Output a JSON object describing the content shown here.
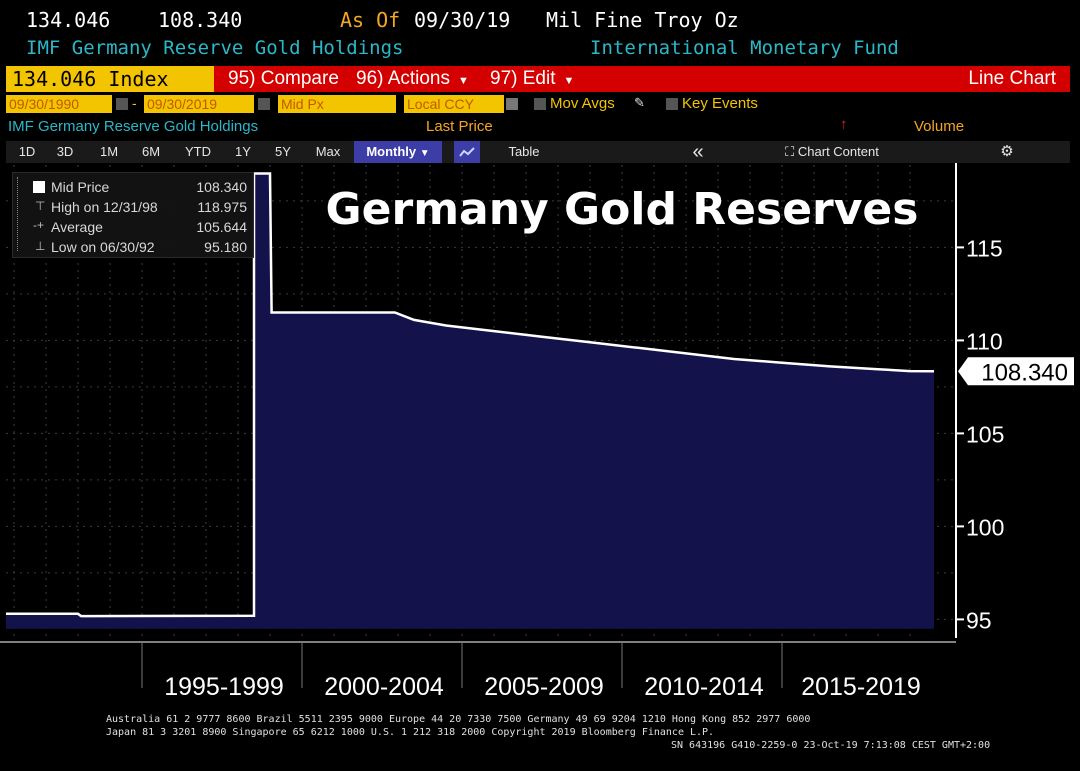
{
  "header": {
    "last_value": "134.046",
    "mid_value": "108.340",
    "as_of_label": "As Of",
    "as_of_date": "09/30/19",
    "unit": "Mil Fine Troy Oz",
    "series_title": "IMF Germany Reserve Gold Holdings",
    "source": "International Monetary Fund"
  },
  "toolbar": {
    "ticker": "134.046 Index",
    "compare": "95) Compare",
    "actions": "96) Actions",
    "edit": "97) Edit",
    "chart_type": "Line Chart"
  },
  "fields": {
    "start_date": "09/30/1990",
    "end_date": "09/30/2019",
    "price_field": "Mid Px",
    "currency": "Local CCY",
    "mov_avgs": "Mov Avgs",
    "key_events": "Key Events"
  },
  "series_row": {
    "name": "IMF Germany Reserve Gold Holdings",
    "last_price": "Last Price",
    "volume": "Volume"
  },
  "periods": [
    "1D",
    "3D",
    "1M",
    "6M",
    "YTD",
    "1Y",
    "5Y",
    "Max"
  ],
  "frequency": "Monthly",
  "table_label": "Table",
  "collapse_glyph": "«",
  "chart_content_label": "Chart Content",
  "legend": {
    "rows": [
      {
        "label": "Mid Price",
        "value": "108.340"
      },
      {
        "label": "High on 12/31/98",
        "value": "118.975"
      },
      {
        "label": "Average",
        "value": "105.644"
      },
      {
        "label": "Low on 06/30/92",
        "value": "95.180"
      }
    ]
  },
  "footer": {
    "line1": "Australia 61 2 9777 8600 Brazil 5511 2395 9000 Europe 44 20 7330 7500 Germany 49 69 9204 1210 Hong Kong 852 2977 6000",
    "line2": "Japan 81 3 3201 8900        Singapore 65 6212 1000        U.S. 1 212 318 2000          Copyright 2019 Bloomberg Finance L.P.",
    "line3": "SN 643196 G410-2259-0 23-Oct-19  7:13:08 CEST GMT+2:00"
  },
  "colors": {
    "accent_red": "#d40000",
    "accent_yellow": "#f3c400",
    "area_fill": "#14124a",
    "line": "#ffffff"
  },
  "chart_data": {
    "type": "area",
    "title": "Germany Gold Reserves",
    "xlabel": "",
    "ylabel": "",
    "ylim": [
      94,
      119
    ],
    "xlim": [
      1990.75,
      2019.75
    ],
    "yticks": [
      95,
      100,
      105,
      110,
      115
    ],
    "ytick_labels": [
      "95",
      "100",
      "105",
      "110",
      "115"
    ],
    "xcategories": [
      "1995-1999",
      "2000-2004",
      "2005-2009",
      "2010-2014",
      "2015-2019"
    ],
    "xcategory_ranges": [
      [
        1995,
        2000
      ],
      [
        2000,
        2005
      ],
      [
        2005,
        2010
      ],
      [
        2010,
        2015
      ],
      [
        2015,
        2020
      ]
    ],
    "last_value_label": "108.340",
    "series": [
      {
        "name": "IMF Germany Reserve Gold Holdings",
        "x": [
          1990.75,
          1993.0,
          1993.1,
          1998.5,
          1998.5,
          1998.99,
          1999.0,
          1999.05,
          2002.9,
          2003.5,
          2004.5,
          2006.0,
          2007.5,
          2009.0,
          2010.5,
          2012.0,
          2013.5,
          2015.0,
          2016.5,
          2018.0,
          2019.0,
          2019.75
        ],
        "y": [
          95.3,
          95.3,
          95.18,
          95.2,
          118.975,
          118.975,
          118.975,
          111.5,
          111.5,
          111.1,
          110.8,
          110.5,
          110.2,
          109.9,
          109.6,
          109.3,
          109.0,
          108.8,
          108.6,
          108.45,
          108.35,
          108.34
        ]
      }
    ]
  }
}
